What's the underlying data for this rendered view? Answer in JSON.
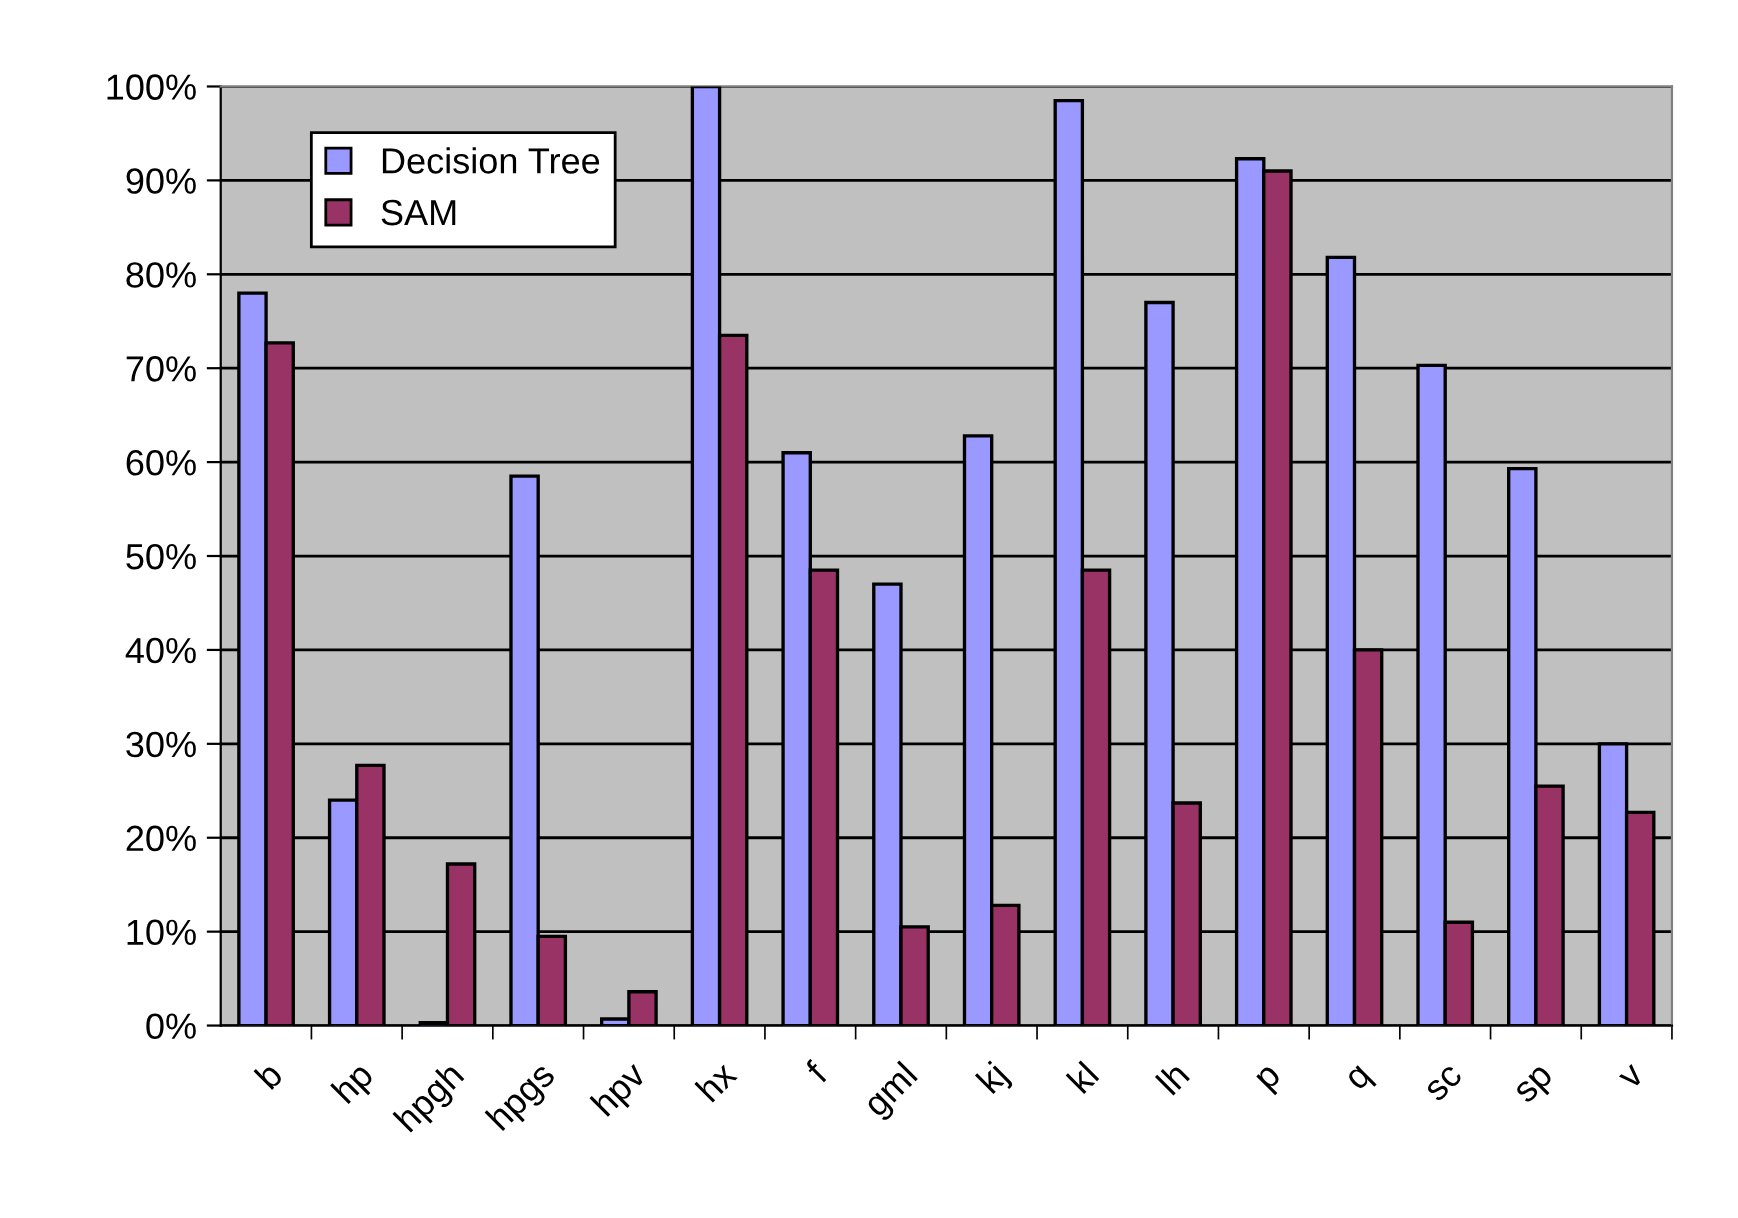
{
  "chart_data": {
    "type": "bar",
    "categories": [
      "b",
      "hp",
      "hpgh",
      "hpgs",
      "hpv",
      "hx",
      "f",
      "gml",
      "kj",
      "kl",
      "lh",
      "p",
      "q",
      "sc",
      "sp",
      "v"
    ],
    "series": [
      {
        "name": "Decision Tree",
        "color": "#9999ff",
        "values": [
          78,
          24,
          0.3,
          58.5,
          0.7,
          100,
          61,
          47,
          62.8,
          98.5,
          77,
          92.3,
          81.8,
          70.3,
          59.3,
          30
        ]
      },
      {
        "name": "SAM",
        "color": "#993366",
        "values": [
          72.7,
          27.7,
          17.2,
          9.5,
          3.6,
          73.5,
          48.5,
          10.5,
          12.8,
          48.5,
          23.7,
          91,
          40,
          11,
          25.5,
          22.7
        ]
      }
    ],
    "ylim": [
      0,
      100
    ],
    "yticks": [
      {
        "value": 0,
        "label": "0%"
      },
      {
        "value": 10,
        "label": "10%"
      },
      {
        "value": 20,
        "label": "20%"
      },
      {
        "value": 30,
        "label": "30%"
      },
      {
        "value": 40,
        "label": "40%"
      },
      {
        "value": 50,
        "label": "50%"
      },
      {
        "value": 60,
        "label": "60%"
      },
      {
        "value": 70,
        "label": "70%"
      },
      {
        "value": 80,
        "label": "80%"
      },
      {
        "value": 90,
        "label": "90%"
      },
      {
        "value": 100,
        "label": "100%"
      }
    ],
    "grid": "y",
    "legend": "top left"
  }
}
